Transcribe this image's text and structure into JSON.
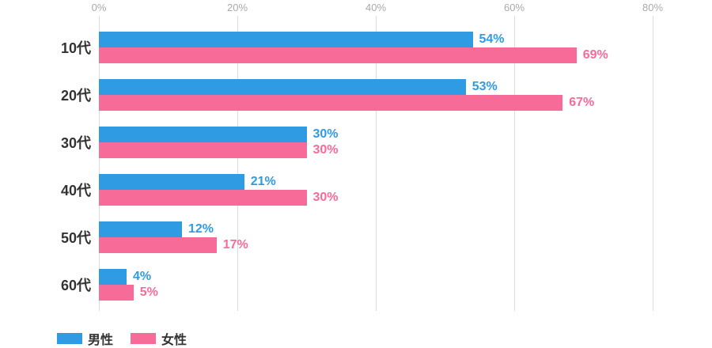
{
  "chart_data": {
    "type": "bar",
    "orientation": "horizontal",
    "title": "",
    "xlabel": "",
    "ylabel": "",
    "categories": [
      "10代",
      "20代",
      "30代",
      "40代",
      "50代",
      "60代"
    ],
    "series": [
      {
        "name": "男性",
        "color": "#2F9BE3",
        "values": [
          54,
          53,
          30,
          21,
          12,
          4
        ]
      },
      {
        "name": "女性",
        "color": "#F76B98",
        "values": [
          69,
          67,
          30,
          30,
          17,
          5
        ]
      }
    ],
    "value_labels": [
      [
        "54%",
        "53%",
        "30%",
        "21%",
        "12%",
        "4%"
      ],
      [
        "69%",
        "67%",
        "30%",
        "30%",
        "17%",
        "5%"
      ]
    ],
    "xlim": [
      0,
      80
    ],
    "ticks": [
      "0%",
      "20%",
      "40%",
      "60%",
      "80%"
    ],
    "tick_values": [
      0,
      20,
      40,
      60,
      80
    ],
    "grid": "vertical",
    "legend_position": "bottom",
    "colors": {
      "grid": "#dddddd",
      "tick_text": "#a9a9a9",
      "category_text": "#333333",
      "legend_text": "#333333",
      "background": "#ffffff"
    }
  }
}
